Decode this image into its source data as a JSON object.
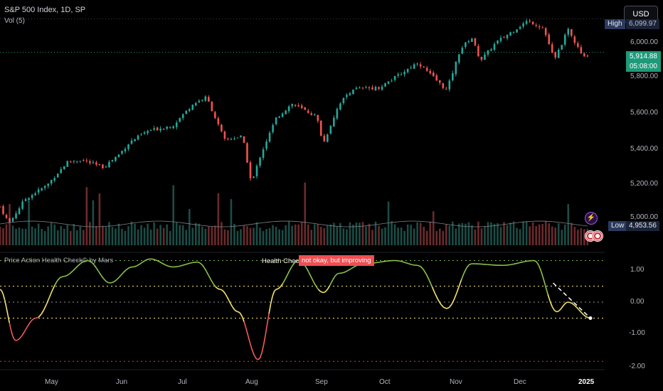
{
  "header": {
    "title": "S&P 500 Index, 1D, SP",
    "volume_indicator": "Vol (5)",
    "currency_button": "USD"
  },
  "price_scale": {
    "ticks": [
      "6,000.00",
      "5,800.00",
      "5,600.00",
      "5,400.00",
      "5,200.00",
      "5,000.00"
    ],
    "high_label": "High",
    "high_value": "6,099.97",
    "last_price": "5,914.88",
    "countdown": "05:08:00",
    "low_label": "Low",
    "low_value": "4,953.56"
  },
  "indicator": {
    "title": "Price Action Health Check© by Mars",
    "status_label": "Health Check",
    "status_text": "not okay, but improving",
    "scale_ticks": [
      "1.00",
      "0.00",
      "-1.00",
      "-2.00"
    ]
  },
  "time_axis": {
    "labels": [
      "May",
      "Jun",
      "Jul",
      "Aug",
      "Sep",
      "Oct",
      "Nov",
      "Dec",
      "2025"
    ]
  },
  "colors": {
    "up": "#26a69a",
    "down": "#ef5350",
    "osc_green": "#8bc34a",
    "osc_yellow": "#f4e46e",
    "osc_red": "#f15b5b",
    "accent_blue": "#2d3a5e"
  },
  "icons": {
    "alert": "lightning-icon",
    "events": "us-flag-icon"
  },
  "chart_data": {
    "type": "candlestick",
    "price_range": [
      4953.56,
      6099.97
    ],
    "high": 6099.97,
    "low": 4953.56,
    "last": 5914.88,
    "close_path": [
      [
        "Apr 15",
        5060
      ],
      [
        "Apr 19",
        4967
      ],
      [
        "Apr 26",
        5100
      ],
      [
        "May 6",
        5180
      ],
      [
        "May 15",
        5308
      ],
      [
        "May 21",
        5320
      ],
      [
        "May 31",
        5278
      ],
      [
        "Jun 7",
        5350
      ],
      [
        "Jun 12",
        5420
      ],
      [
        "Jun 20",
        5480
      ],
      [
        "Jul 1",
        5510
      ],
      [
        "Jul 10",
        5630
      ],
      [
        "Jul 16",
        5667
      ],
      [
        "Jul 24",
        5430
      ],
      [
        "Aug 1",
        5450
      ],
      [
        "Aug 5",
        5186
      ],
      [
        "Aug 9",
        5345
      ],
      [
        "Aug 16",
        5550
      ],
      [
        "Aug 23",
        5630
      ],
      [
        "Sep 3",
        5560
      ],
      [
        "Sep 6",
        5408
      ],
      [
        "Sep 13",
        5630
      ],
      [
        "Sep 19",
        5712
      ],
      [
        "Oct 1",
        5720
      ],
      [
        "Oct 11",
        5800
      ],
      [
        "Oct 18",
        5860
      ],
      [
        "Oct 31",
        5705
      ],
      [
        "Nov 6",
        5930
      ],
      [
        "Nov 11",
        6000
      ],
      [
        "Nov 15",
        5870
      ],
      [
        "Nov 22",
        5970
      ],
      [
        "Dec 6",
        6090
      ],
      [
        "Dec 13",
        6051
      ],
      [
        "Dec 18",
        5870
      ],
      [
        "Dec 20",
        5930
      ],
      [
        "Dec 24",
        6040
      ],
      [
        "Dec 27",
        5970
      ],
      [
        "Dec 31",
        5882
      ],
      [
        "Jan 2",
        5914.88
      ]
    ],
    "oscillator": {
      "name": "Price Action Health Check",
      "levels": [
        1.3,
        0.5,
        0,
        -0.5,
        -1.85
      ],
      "ylim": [
        -2.0,
        1.5
      ],
      "points": [
        [
          "Apr 15",
          0.4
        ],
        [
          "Apr 22",
          -1.2
        ],
        [
          "May 1",
          -0.5
        ],
        [
          "May 13",
          0.8
        ],
        [
          "May 24",
          1.3
        ],
        [
          "Jun 3",
          0.6
        ],
        [
          "Jun 13",
          1.1
        ],
        [
          "Jun 21",
          1.35
        ],
        [
          "Jul 1",
          1.1
        ],
        [
          "Jul 12",
          1.25
        ],
        [
          "Jul 22",
          0.4
        ],
        [
          "Jul 30",
          -0.3
        ],
        [
          "Aug 8",
          -1.8
        ],
        [
          "Aug 16",
          0.4
        ],
        [
          "Aug 26",
          1.3
        ],
        [
          "Sep 6",
          0.3
        ],
        [
          "Sep 13",
          0.9
        ],
        [
          "Sep 24",
          1.2
        ],
        [
          "Oct 8",
          1.3
        ],
        [
          "Oct 18",
          1.15
        ],
        [
          "Oct 31",
          -0.2
        ],
        [
          "Nov 11",
          1.2
        ],
        [
          "Nov 25",
          1.15
        ],
        [
          "Dec 9",
          1.3
        ],
        [
          "Dec 19",
          -0.3
        ],
        [
          "Dec 24",
          0.0
        ],
        [
          "Jan 2",
          -0.5
        ]
      ]
    }
  }
}
